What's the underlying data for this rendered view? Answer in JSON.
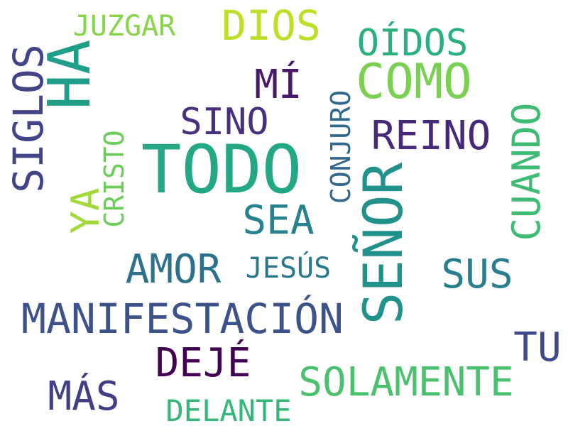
{
  "words": [
    {
      "id": "todo",
      "text": "TODO",
      "color": "#22a884"
    },
    {
      "id": "senor",
      "text": "SEÑOR",
      "color": "#21918c"
    },
    {
      "id": "ha",
      "text": "HA",
      "color": "#1f9e89"
    },
    {
      "id": "como",
      "text": "COMO",
      "color": "#7ad151"
    },
    {
      "id": "manifestacion",
      "text": "MANIFESTACIÓN",
      "color": "#3b528b"
    },
    {
      "id": "siglos",
      "text": "SIGLOS",
      "color": "#414487"
    },
    {
      "id": "dios",
      "text": "DIOS",
      "color": "#bddf26"
    },
    {
      "id": "solamente",
      "text": "SOLAMENTE",
      "color": "#4ac16d"
    },
    {
      "id": "deje",
      "text": "DEJÉ",
      "color": "#440154"
    },
    {
      "id": "oidos",
      "text": "OÍDOS",
      "color": "#2ab07f"
    },
    {
      "id": "reino",
      "text": "REINO",
      "color": "#482878"
    },
    {
      "id": "sino",
      "text": "SINO",
      "color": "#472f7d"
    },
    {
      "id": "mi",
      "text": "MÍ",
      "color": "#481a6c"
    },
    {
      "id": "amor",
      "text": "AMOR",
      "color": "#2c728e"
    },
    {
      "id": "sea",
      "text": "SEA",
      "color": "#26828e"
    },
    {
      "id": "sus",
      "text": "SUS",
      "color": "#287d8e"
    },
    {
      "id": "mas",
      "text": "MÁS",
      "color": "#433e85"
    },
    {
      "id": "cuando",
      "text": "CUANDO",
      "color": "#3fbc73"
    },
    {
      "id": "tu",
      "text": "TU",
      "color": "#3e4a89"
    },
    {
      "id": "ya",
      "text": "YA",
      "color": "#a0da39"
    },
    {
      "id": "juzgar",
      "text": "JUZGAR",
      "color": "#86d549"
    },
    {
      "id": "delante",
      "text": "DELANTE",
      "color": "#35b779"
    },
    {
      "id": "conjuro",
      "text": "CONJURO",
      "color": "#31688e"
    },
    {
      "id": "jesus",
      "text": "JESÚS",
      "color": "#2a788e"
    },
    {
      "id": "cristo",
      "text": "CRISTO",
      "color": "#6ccd5a"
    }
  ]
}
